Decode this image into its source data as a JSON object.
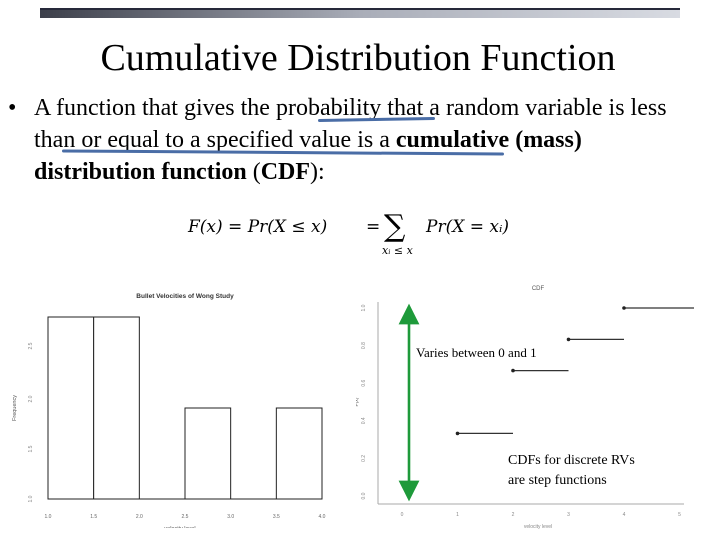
{
  "slide": {
    "title": "Cumulative Distribution Function",
    "bullet_symbol": "•",
    "bullet": {
      "part1": "A function that gives the ",
      "prob": "probability",
      "part2": " that a random variable ",
      "part3": "is less than or equal to a specified value",
      "part4": " is a ",
      "bold1": "cumulative (mass) distribution function",
      "part5": " (",
      "bold2": "CDF",
      "part6": "):"
    },
    "formula": {
      "lhs": "F(x) = Pr(X ≤ x)",
      "eq": "=",
      "sigma": "∑",
      "sub": "xᵢ ≤ x",
      "rhs": "Pr(X = xᵢ)"
    },
    "annotation_varies": "Varies between 0 and 1",
    "annotation_step_line1": "CDFs for discrete RVs",
    "annotation_step_line2": "are step functions",
    "colors": {
      "underline": "#4a6da6",
      "arrow": "#1e9a3a",
      "topbar": "#8a8fa0"
    }
  },
  "chart_data": [
    {
      "type": "bar",
      "title": "Bullet Velocities of Wong Study",
      "xlabel": "velocity level",
      "ylabel": "Frequency",
      "x_ticks": [
        "1.0",
        "1.5",
        "2.0",
        "2.5",
        "3.0",
        "3.5",
        "4.0"
      ],
      "y_ticks": [
        "1.0",
        "1.5",
        "2.0",
        "2.5"
      ],
      "bins": [
        [
          1.0,
          1.5
        ],
        [
          1.5,
          2.0
        ],
        [
          2.0,
          2.5
        ],
        [
          2.5,
          3.0
        ],
        [
          3.0,
          3.5
        ],
        [
          3.5,
          4.0
        ]
      ],
      "values": [
        2,
        2,
        0,
        1,
        0,
        1
      ],
      "xlim": [
        1.0,
        4.0
      ],
      "ylim": [
        0,
        2
      ]
    },
    {
      "type": "line",
      "title": "CDF",
      "xlabel": "velocity level",
      "ylabel": "F(x)",
      "x_ticks": [
        "0",
        "1",
        "2",
        "3",
        "4",
        "5"
      ],
      "y_ticks": [
        "0.0",
        "0.2",
        "0.4",
        "0.6",
        "0.8",
        "1.0"
      ],
      "steps": [
        {
          "x_start": 0,
          "x_end": 1,
          "y": 0.0
        },
        {
          "x_start": 1,
          "x_end": 2,
          "y": 0.333
        },
        {
          "x_start": 2,
          "x_end": 3,
          "y": 0.667
        },
        {
          "x_start": 3,
          "x_end": 4,
          "y": 0.833
        },
        {
          "x_start": 4,
          "x_end": 5.3,
          "y": 1.0
        }
      ],
      "xlim": [
        0,
        5
      ],
      "ylim": [
        0,
        1
      ]
    }
  ]
}
